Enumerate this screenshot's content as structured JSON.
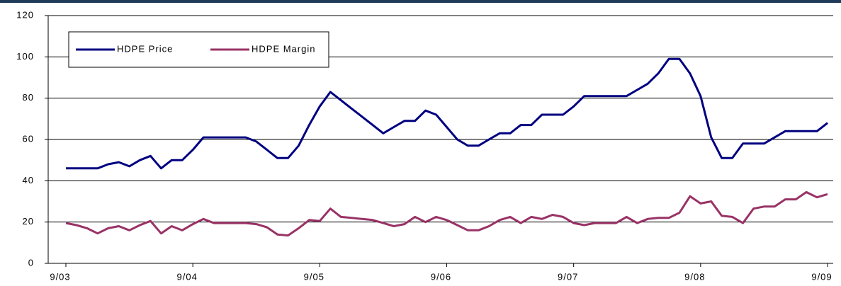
{
  "chart_data": {
    "type": "line",
    "categories": [
      "9/03",
      null,
      null,
      null,
      null,
      null,
      null,
      null,
      null,
      null,
      null,
      null,
      "9/04",
      null,
      null,
      null,
      null,
      null,
      null,
      null,
      null,
      null,
      null,
      null,
      "9/05",
      null,
      null,
      null,
      null,
      null,
      null,
      null,
      null,
      null,
      null,
      null,
      "9/06",
      null,
      null,
      null,
      null,
      null,
      null,
      null,
      null,
      null,
      null,
      null,
      "9/07",
      null,
      null,
      null,
      null,
      null,
      null,
      null,
      null,
      null,
      null,
      null,
      "9/08",
      null,
      null,
      null,
      null,
      null,
      null,
      null,
      null,
      null,
      null,
      null,
      "9/09"
    ],
    "series": [
      {
        "name": "HDPE Price",
        "color": "#000080",
        "values": [
          46,
          46,
          46,
          46,
          48,
          49,
          47,
          50,
          52,
          46,
          50,
          50,
          55,
          61,
          61,
          61,
          61,
          61,
          59,
          55,
          51,
          51,
          57,
          67,
          76,
          83,
          79,
          75,
          71,
          67,
          63,
          66,
          69,
          69,
          74,
          72,
          66,
          60,
          57,
          57,
          60,
          63,
          63,
          67,
          67,
          72,
          72,
          72,
          76,
          81,
          81,
          81,
          81,
          81,
          84,
          87,
          92,
          99,
          99,
          92,
          81,
          61,
          51,
          51,
          58,
          58,
          58,
          61,
          64,
          64,
          64,
          64,
          68
        ]
      },
      {
        "name": "HDPE Margin",
        "color": "#993366",
        "values": [
          19.5,
          18.5,
          17,
          14.5,
          17,
          18,
          16,
          18.5,
          20.5,
          14.5,
          18,
          16,
          19,
          21.5,
          19.5,
          19.5,
          19.5,
          19.5,
          19,
          17.5,
          14,
          13.5,
          17,
          21,
          20.5,
          26.5,
          22.5,
          22,
          21.5,
          21,
          19.5,
          18,
          19,
          22.5,
          20,
          22.5,
          21,
          18.5,
          16,
          16,
          18,
          21,
          22.5,
          19.5,
          22.5,
          21.5,
          23.5,
          22.5,
          19.5,
          18.5,
          19.5,
          19.5,
          19.5,
          22.5,
          19.5,
          21.5,
          22,
          22,
          24.5,
          32.5,
          29,
          30,
          23,
          22.5,
          19.5,
          26.5,
          27.5,
          27.5,
          31,
          31,
          34.5,
          32,
          33.5
        ]
      }
    ],
    "ylim": [
      0,
      120
    ],
    "yticks": [
      0,
      20,
      40,
      60,
      80,
      100,
      120
    ],
    "grid": true,
    "legend": "upper left"
  }
}
